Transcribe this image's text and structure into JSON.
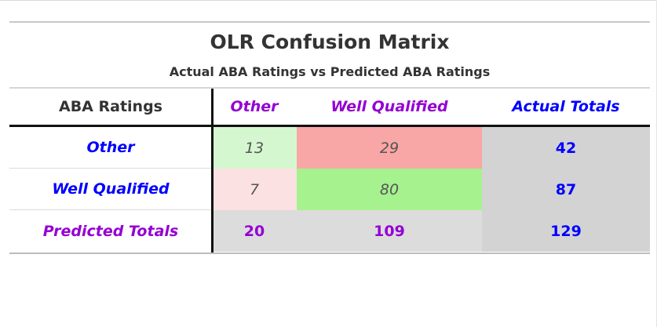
{
  "chart_data": {
    "type": "table",
    "title": "OLR Confusion Matrix",
    "subtitle": "Actual ABA Ratings vs Predicted ABA Ratings",
    "corner_label": "ABA Ratings",
    "columns": [
      "Other",
      "Well Qualified",
      "Actual Totals"
    ],
    "rows": [
      {
        "label": "Other",
        "values": [
          "13",
          "29"
        ],
        "total": "42"
      },
      {
        "label": "Well Qualified",
        "values": [
          "7",
          "80"
        ],
        "total": "87"
      },
      {
        "label": "Predicted Totals",
        "values": [
          "20",
          "109"
        ],
        "total": "129"
      }
    ],
    "cell_colors": {
      "other_other": "#d4f7cf",
      "other_wq": "#f9a6a6",
      "wq_other": "#fbe1e1",
      "wq_wq": "#a5f28f",
      "totals": "#d3d3d3",
      "accent_purple": "#9400d3",
      "accent_blue": "#0000ff"
    }
  }
}
